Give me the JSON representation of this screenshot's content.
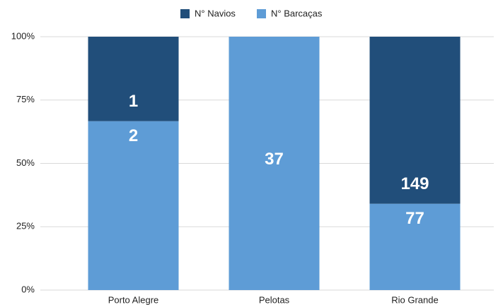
{
  "chart_data": {
    "type": "bar",
    "stacking": "percent",
    "categories": [
      "Porto Alegre",
      "Pelotas",
      "Rio Grande"
    ],
    "series": [
      {
        "name": "N° Barcaças",
        "color": "#5e9cd6",
        "values": [
          2,
          37,
          77
        ]
      },
      {
        "name": "N° Navios",
        "color": "#214e7a",
        "values": [
          1,
          0,
          149
        ]
      }
    ],
    "legend": "top",
    "ylim": [
      0,
      100
    ],
    "yticks": [
      {
        "value": 0,
        "label": "0%"
      },
      {
        "value": 25,
        "label": "25%"
      },
      {
        "value": 50,
        "label": "50%"
      },
      {
        "value": 75,
        "label": "75%"
      },
      {
        "value": 100,
        "label": "100%"
      }
    ],
    "grid": true
  }
}
